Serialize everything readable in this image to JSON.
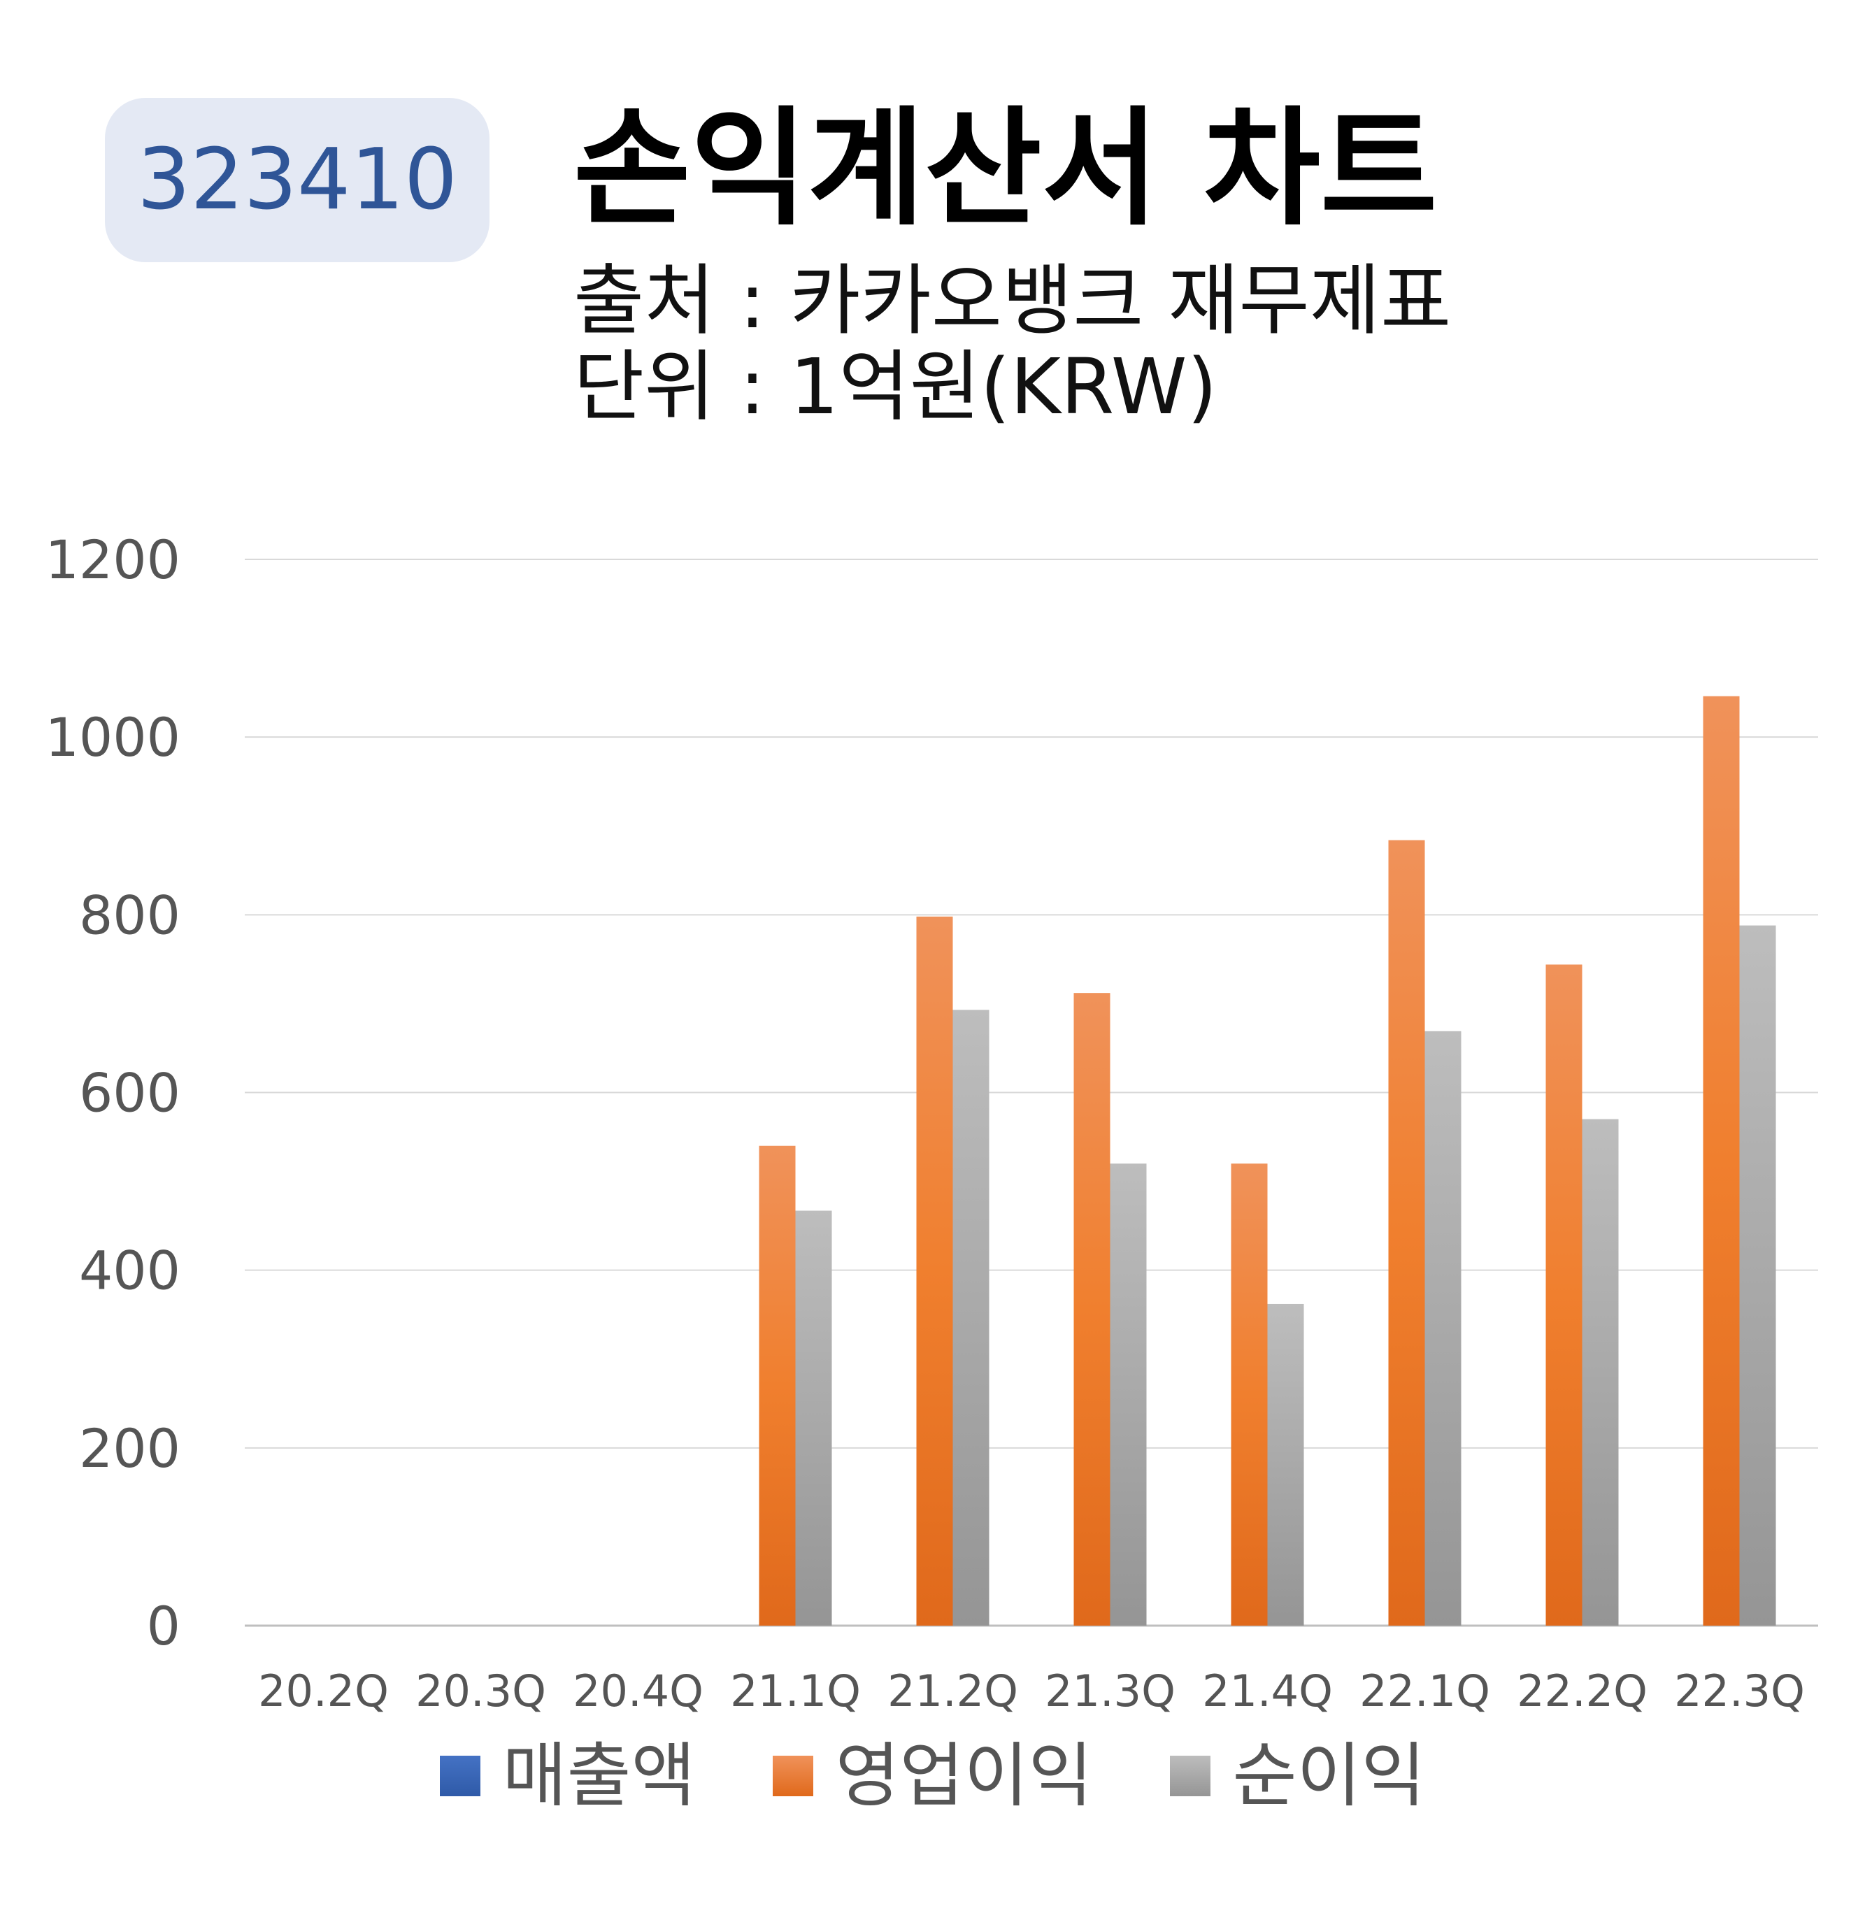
{
  "badge": {
    "code": "323410"
  },
  "header": {
    "title": "손익계산서 차트",
    "source": "출처 : 카카오뱅크 재무제표",
    "unit": "단위 : 1억원(KRW)"
  },
  "chart_data": {
    "type": "bar",
    "categories": [
      "20.2Q",
      "20.3Q",
      "20.4Q",
      "21.1Q",
      "21.2Q",
      "21.3Q",
      "21.4Q",
      "22.1Q",
      "22.2Q",
      "22.3Q"
    ],
    "series": [
      {
        "name": "매출액",
        "color": "#2f62c8",
        "values": [
          null,
          null,
          null,
          null,
          null,
          null,
          null,
          null,
          null,
          null
        ]
      },
      {
        "name": "영업이익",
        "color": "#ed7d31",
        "values": [
          null,
          null,
          null,
          540,
          798,
          712,
          520,
          884,
          744,
          1046
        ]
      },
      {
        "name": "순이익",
        "color": "#a5a5a5",
        "values": [
          null,
          null,
          null,
          467,
          693,
          520,
          362,
          669,
          570,
          788
        ]
      }
    ],
    "yticks": [
      "0",
      "200",
      "400",
      "600",
      "800",
      "1000",
      "1200"
    ],
    "ylim": [
      0,
      1200
    ],
    "grid": true,
    "legend_position": "bottom"
  }
}
